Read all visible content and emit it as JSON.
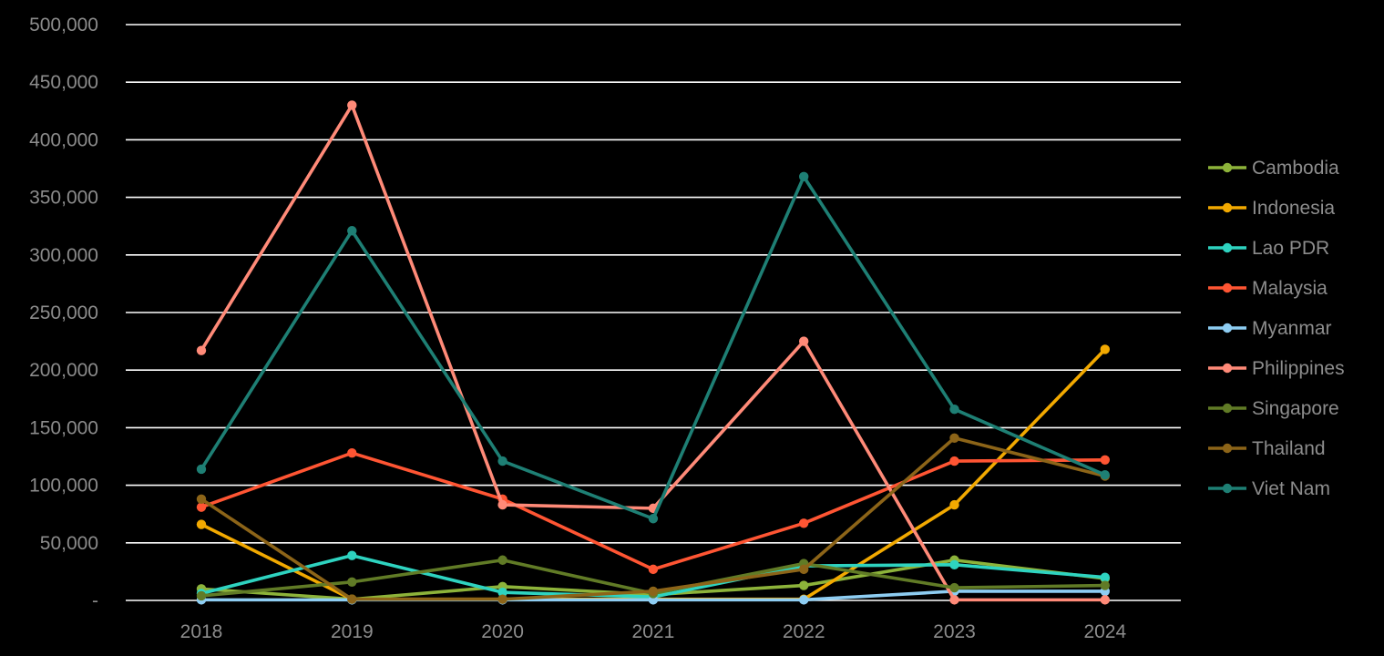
{
  "chart_data": {
    "type": "line",
    "categories": [
      "2018",
      "2019",
      "2020",
      "2021",
      "2022",
      "2023",
      "2024"
    ],
    "ylim": [
      0,
      500000
    ],
    "y_ticks": [
      0,
      50000,
      100000,
      150000,
      200000,
      250000,
      300000,
      350000,
      400000,
      450000,
      500000
    ],
    "y_tick_labels": [
      "-",
      "50,000",
      "100,000",
      "150,000",
      "200,000",
      "250,000",
      "300,000",
      "350,000",
      "400,000",
      "450,000",
      "500,000"
    ],
    "grid": true,
    "legend_position": "right",
    "series": [
      {
        "name": "Cambodia",
        "color": "#8db33a",
        "values": [
          10000,
          1000,
          12000,
          5000,
          13000,
          35000,
          19000
        ]
      },
      {
        "name": "Indonesia",
        "color": "#f2a900",
        "values": [
          66000,
          1000,
          1000,
          1000,
          1000,
          83000,
          218000
        ]
      },
      {
        "name": "Lao PDR",
        "color": "#2ed3c0",
        "values": [
          6000,
          39000,
          7000,
          3000,
          30000,
          31000,
          20000
        ]
      },
      {
        "name": "Malaysia",
        "color": "#ff5533",
        "values": [
          81000,
          128000,
          88000,
          27000,
          67000,
          121000,
          122000
        ]
      },
      {
        "name": "Myanmar",
        "color": "#8ecdf2",
        "values": [
          500,
          500,
          500,
          500,
          500,
          8000,
          8000
        ]
      },
      {
        "name": "Philippines",
        "color": "#ff8a78",
        "values": [
          217000,
          430000,
          83000,
          80000,
          225000,
          500,
          500
        ]
      },
      {
        "name": "Singapore",
        "color": "#617b26",
        "values": [
          4000,
          16000,
          35000,
          6000,
          32000,
          11000,
          13000
        ]
      },
      {
        "name": "Thailand",
        "color": "#8c6418",
        "values": [
          88000,
          1000,
          1000,
          8000,
          27000,
          141000,
          108000
        ]
      },
      {
        "name": "Viet Nam",
        "color": "#1e7f74",
        "values": [
          114000,
          321000,
          121000,
          71000,
          368000,
          166000,
          109000
        ]
      }
    ]
  }
}
